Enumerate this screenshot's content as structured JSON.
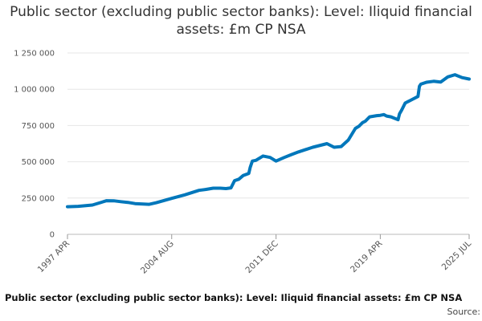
{
  "chart_data": {
    "type": "line",
    "title": "Public sector (excluding public sector banks): Level: Iliquid financial assets: £m CP NSA",
    "y_ticks": [
      "0",
      "250 000",
      "500 000",
      "750 000",
      "1 000 000",
      "1 250 000"
    ],
    "y_tick_values": [
      0,
      250000,
      500000,
      750000,
      1000000,
      1250000
    ],
    "ylim": [
      0,
      1250000
    ],
    "x_ticks": [
      "1997 APR",
      "2004 AUG",
      "2011 DEC",
      "2019 APR",
      "2025 JUL"
    ],
    "x_tick_values": [
      1997.25,
      2004.58,
      2011.92,
      2019.25,
      2025.5
    ],
    "xlim": [
      1997.25,
      2025.5
    ],
    "grid": "horizontal",
    "line_color": "#0077bb",
    "series": [
      {
        "x": [
          1997.25,
          1998.0,
          1999.0,
          2000.0,
          2000.5,
          2001.0,
          2001.5,
          2002.0,
          2003.0,
          2003.5,
          2004.0,
          2004.58,
          2005.5,
          2006.5,
          2007.0,
          2007.5,
          2008.0,
          2008.4,
          2008.75,
          2009.0,
          2009.3,
          2009.6,
          2010.0,
          2010.1,
          2010.25,
          2010.5,
          2011.0,
          2011.5,
          2011.92,
          2012.5,
          2013.0,
          2013.5,
          2014.5,
          2015.5,
          2016.0,
          2016.5,
          2017.0,
          2017.5,
          2017.75,
          2018.0,
          2018.2,
          2018.5,
          2019.0,
          2019.25,
          2019.5,
          2019.7,
          2020.0,
          2020.5,
          2020.6,
          2020.75,
          2021.0,
          2021.5,
          2021.9,
          2022.0,
          2022.1,
          2022.5,
          2023.0,
          2023.5,
          2024.0,
          2024.5,
          2025.0,
          2025.5
        ],
        "y": [
          190000,
          193000,
          202000,
          232000,
          231000,
          225000,
          220000,
          212000,
          207000,
          218000,
          232000,
          248000,
          272000,
          303000,
          310000,
          318000,
          318000,
          315000,
          320000,
          370000,
          380000,
          405000,
          420000,
          460000,
          505000,
          510000,
          540000,
          530000,
          505000,
          530000,
          550000,
          568000,
          600000,
          625000,
          600000,
          605000,
          650000,
          730000,
          745000,
          770000,
          780000,
          810000,
          818000,
          820000,
          825000,
          815000,
          810000,
          790000,
          830000,
          855000,
          905000,
          930000,
          950000,
          1020000,
          1035000,
          1048000,
          1055000,
          1050000,
          1085000,
          1100000,
          1080000,
          1070000
        ]
      }
    ]
  },
  "footer": {
    "caption": "Public sector (excluding public sector banks): Level: Iliquid financial assets: £m CP NSA",
    "source": "Source:"
  }
}
